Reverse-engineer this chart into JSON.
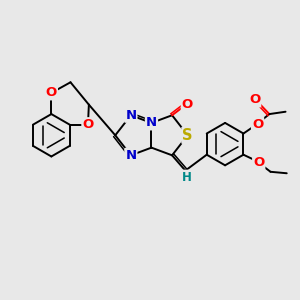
{
  "bg_color": "#e8e8e8",
  "bond_color": "#000000",
  "bond_width": 1.4,
  "dbo": 0.055,
  "atom_colors": {
    "N": "#0000cc",
    "O": "#ff0000",
    "S": "#bbaa00",
    "H": "#008888",
    "C": "#000000"
  },
  "fs": 8.5
}
